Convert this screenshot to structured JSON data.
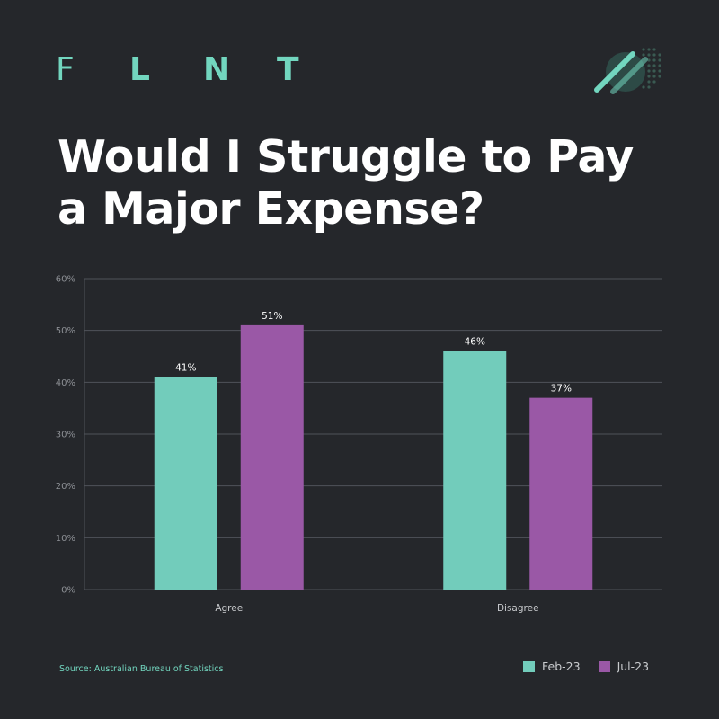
{
  "brand": {
    "letters": [
      "F",
      "L",
      "N",
      "T"
    ],
    "mark_icon": "flnt-logo-mark-icon"
  },
  "title": {
    "line1": "Would I Struggle to Pay",
    "line2": "a Major Expense?"
  },
  "source": "Source: Australian Bureau of Statistics",
  "colors": {
    "background": "#25272b",
    "brand": "#72d6bf",
    "feb": "#72ccbb",
    "jul": "#9a58a6",
    "grid": "#50535a",
    "tick": "#8c8f94"
  },
  "chart_data": {
    "type": "bar",
    "categories": [
      "Agree",
      "Disagree"
    ],
    "series": [
      {
        "name": "Feb-23",
        "values": [
          41,
          46
        ],
        "labels": [
          "41%",
          "46%"
        ]
      },
      {
        "name": "Jul-23",
        "values": [
          51,
          37
        ],
        "labels": [
          "51%",
          "37%"
        ]
      }
    ],
    "ylim": [
      0,
      60
    ],
    "yticks": [
      0,
      10,
      20,
      30,
      40,
      50,
      60
    ],
    "ytick_labels": [
      "0%",
      "10%",
      "20%",
      "30%",
      "40%",
      "50%",
      "60%"
    ],
    "grid": true,
    "legend": "bottom-right"
  }
}
